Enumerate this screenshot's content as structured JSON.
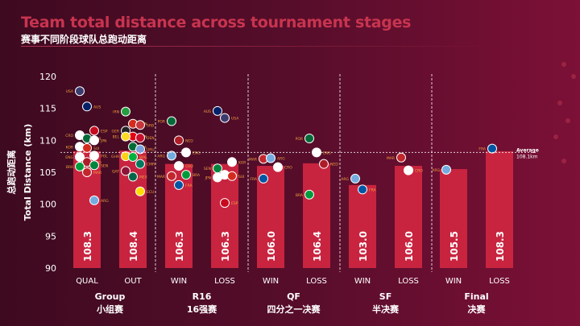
{
  "title": "Team total distance across tournament stages",
  "subtitle": "赛事不同阶段球队总跑动距离",
  "colors": {
    "bar": "#c8243f",
    "title": "#c8344f",
    "label": "#f0a040"
  },
  "chart_data": {
    "type": "bar",
    "title": "Team total distance across tournament stages",
    "ylabel": "Total Distance (km)",
    "ylabel_cn": "总跑动距离",
    "ylim": [
      90,
      120
    ],
    "yticks": [
      90,
      95,
      100,
      105,
      110,
      115,
      120
    ],
    "groups": [
      {
        "name": "Group",
        "name_cn": "小组赛",
        "categories": [
          "QUAL",
          "OUT"
        ]
      },
      {
        "name": "R16",
        "name_cn": "16强赛",
        "categories": [
          "WIN",
          "LOSS"
        ]
      },
      {
        "name": "QF",
        "name_cn": "四分之一决赛",
        "categories": [
          "WIN",
          "LOSS"
        ]
      },
      {
        "name": "SF",
        "name_cn": "半决赛",
        "categories": [
          "WIN",
          "LOSS"
        ]
      },
      {
        "name": "Final",
        "name_cn": "决赛",
        "categories": [
          "WIN",
          "LOSS"
        ]
      }
    ],
    "values": [
      108.3,
      108.4,
      106.3,
      106.3,
      106.0,
      106.4,
      103.0,
      106.0,
      105.5,
      108.3
    ],
    "value_labels": [
      "108.3",
      "108.4",
      "106.3",
      "106.3",
      "106.0",
      "106.4",
      "103.0",
      "106.0",
      "105.5",
      "108.3"
    ],
    "average": {
      "value": 108.1,
      "label": "Average",
      "value_label": "108.1km"
    },
    "teams": [
      [
        [
          "USA",
          117.7
        ],
        [
          "AUS",
          115.3
        ],
        [
          "ESP",
          111.5
        ],
        [
          "CRO",
          110.8
        ],
        [
          "POR",
          110.3
        ],
        [
          "JPN",
          110
        ],
        [
          "KOR",
          109
        ],
        [
          "SUI",
          108.8
        ],
        [
          "POL",
          107.6
        ],
        [
          "ENG",
          107.4
        ],
        [
          "NED",
          106.6
        ],
        [
          "SEN",
          106.1
        ],
        [
          "BRA",
          105.9
        ],
        [
          "MAR",
          105
        ],
        [
          "ARG",
          100.6
        ]
      ],
      [
        [
          "IRN",
          114.5
        ],
        [
          "CAN",
          112.6
        ],
        [
          "SRB",
          112.4
        ],
        [
          "GER",
          111.5
        ],
        [
          "TUN",
          110.6
        ],
        [
          "DEN",
          110.4
        ],
        [
          "BEL",
          110.6
        ],
        [
          "KSA",
          109
        ],
        [
          "URU",
          108.6
        ],
        [
          "GHA",
          107.5
        ],
        [
          "WAL",
          107.4
        ],
        [
          "CMR",
          106.3
        ],
        [
          "QAT",
          105.2
        ],
        [
          "MEX",
          104.3
        ],
        [
          "ECU",
          102
        ]
      ],
      [
        [
          "POR",
          113
        ],
        [
          "NED",
          110
        ],
        [
          "ENG",
          108.1
        ],
        [
          "ARG",
          107.6
        ],
        [
          "CRO",
          106
        ],
        [
          "BRA",
          104.6
        ],
        [
          "MAR",
          104.4
        ],
        [
          "FRA",
          103
        ]
      ],
      [
        [
          "AUS",
          114.6
        ],
        [
          "USA",
          113.5
        ],
        [
          "KOR",
          106.6
        ],
        [
          "SEN",
          105.6
        ],
        [
          "POL",
          104.6
        ],
        [
          "SUI",
          104.4
        ],
        [
          "JPN",
          104.2
        ],
        [
          "ESP",
          100.2
        ]
      ],
      [
        [
          "MAR",
          107.1
        ],
        [
          "ARG",
          107.2
        ],
        [
          "CRO",
          105.8
        ],
        [
          "FRA",
          104
        ]
      ],
      [
        [
          "POR",
          110.3
        ],
        [
          "ENG",
          108.1
        ],
        [
          "NED",
          106.3
        ],
        [
          "BRA",
          101.5
        ]
      ],
      [
        [
          "ARG",
          104
        ],
        [
          "FRA",
          102.3
        ]
      ],
      [
        [
          "MAR",
          107.3
        ],
        [
          "CRO",
          105.3
        ]
      ],
      [
        [
          "ARG",
          105.4
        ]
      ],
      [
        [
          "FRA",
          108.7
        ]
      ]
    ]
  }
}
